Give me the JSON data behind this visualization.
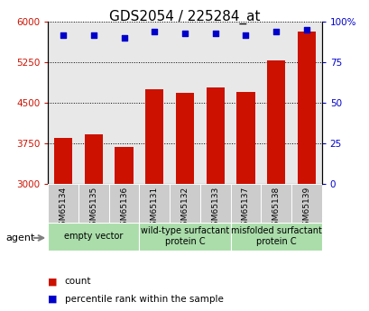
{
  "title": "GDS2054 / 225284_at",
  "categories": [
    "GSM65134",
    "GSM65135",
    "GSM65136",
    "GSM65131",
    "GSM65132",
    "GSM65133",
    "GSM65137",
    "GSM65138",
    "GSM65139"
  ],
  "bar_values": [
    3850,
    3920,
    3680,
    4750,
    4680,
    4780,
    4700,
    5280,
    5820
  ],
  "percentile_values": [
    92,
    92,
    90,
    94,
    93,
    93,
    92,
    94,
    95
  ],
  "ylim_left": [
    3000,
    6000
  ],
  "ylim_right": [
    0,
    100
  ],
  "yticks_left": [
    3000,
    3750,
    4500,
    5250,
    6000
  ],
  "ytick_labels_left": [
    "3000",
    "3750",
    "4500",
    "5250",
    "6000"
  ],
  "yticks_right": [
    0,
    25,
    50,
    75,
    100
  ],
  "ytick_labels_right": [
    "0",
    "25",
    "50",
    "75",
    "100%"
  ],
  "bar_color": "#cc1100",
  "dot_color": "#0000cc",
  "agent_label": "agent",
  "legend_items": [
    "count",
    "percentile rank within the sample"
  ],
  "grid_color": "black",
  "title_fontsize": 11,
  "tick_label_color_left": "#cc1100",
  "tick_label_color_right": "#0000cc",
  "bg_plot": "#e8e8e8",
  "group_bg_color": "#aaddaa",
  "sample_bg_color": "#cccccc",
  "group_info": [
    [
      0,
      2,
      "empty vector"
    ],
    [
      3,
      5,
      "wild-type surfactant\nprotein C"
    ],
    [
      6,
      8,
      "misfolded surfactant\nprotein C"
    ]
  ]
}
